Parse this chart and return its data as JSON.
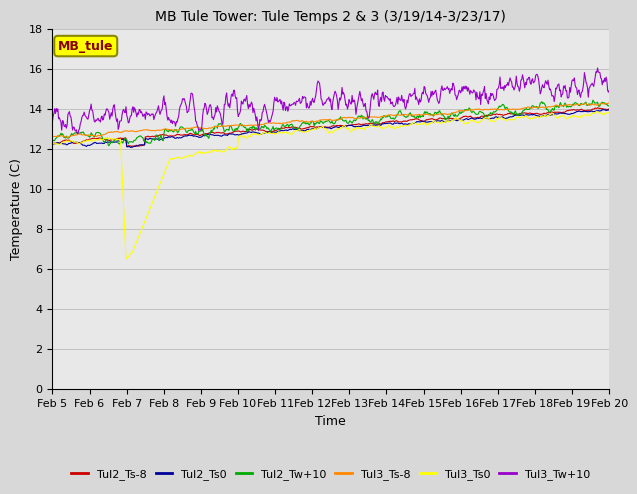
{
  "title": "MB Tule Tower: Tule Temps 2 & 3 (3/19/14-3/23/17)",
  "xlabel": "Time",
  "ylabel": "Temperature (C)",
  "ylim": [
    0,
    18
  ],
  "yticks": [
    0,
    2,
    4,
    6,
    8,
    10,
    12,
    14,
    16,
    18
  ],
  "xtick_labels": [
    "Feb 5",
    "Feb 6",
    "Feb 7",
    "Feb 8",
    "Feb 9",
    "Feb 10",
    "Feb 11",
    "Feb 12",
    "Feb 13",
    "Feb 14",
    "Feb 15",
    "Feb 16",
    "Feb 17",
    "Feb 18",
    "Feb 19",
    "Feb 20"
  ],
  "legend_label": "MB_tule",
  "legend_box_facecolor": "#ffff00",
  "legend_box_edgecolor": "#888800",
  "legend_text_color": "#880000",
  "series_labels": [
    "Tul2_Ts-8",
    "Tul2_Ts0",
    "Tul2_Tw+10",
    "Tul3_Ts-8",
    "Tul3_Ts0",
    "Tul3_Tw+10"
  ],
  "series_colors": [
    "#cc0000",
    "#000099",
    "#00aa00",
    "#ff8800",
    "#ffff00",
    "#9900cc"
  ],
  "background_color": "#d8d8d8",
  "plot_bg_color": "#e8e8e8",
  "title_fontsize": 10,
  "axis_fontsize": 9,
  "tick_fontsize": 8
}
